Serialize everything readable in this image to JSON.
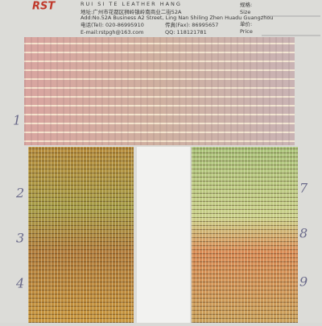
{
  "header": {
    "logo": "RST",
    "company": "RUI SI TE LEATHER HANG",
    "address_cn": "地址:广州市花都区狮岭镇岭南商业二街52A",
    "address_en": "Add:No.52A Business A2 Street, Ling Nan Shiling Zhen Huadu Guangzhou",
    "tel": "电话(Tel): 020-86995910",
    "fax": "传真(Fax): 86995657",
    "email": "E-mail:rstpgh@163.com",
    "qq": "QQ: 118121781",
    "size_cn": "规格:",
    "size_en": "Size",
    "price_cn": "单价:",
    "price_en": "Price"
  },
  "swatch_numbers": {
    "left": [
      "1",
      "2",
      "3",
      "4"
    ],
    "right": [
      "7",
      "8",
      "9"
    ]
  }
}
